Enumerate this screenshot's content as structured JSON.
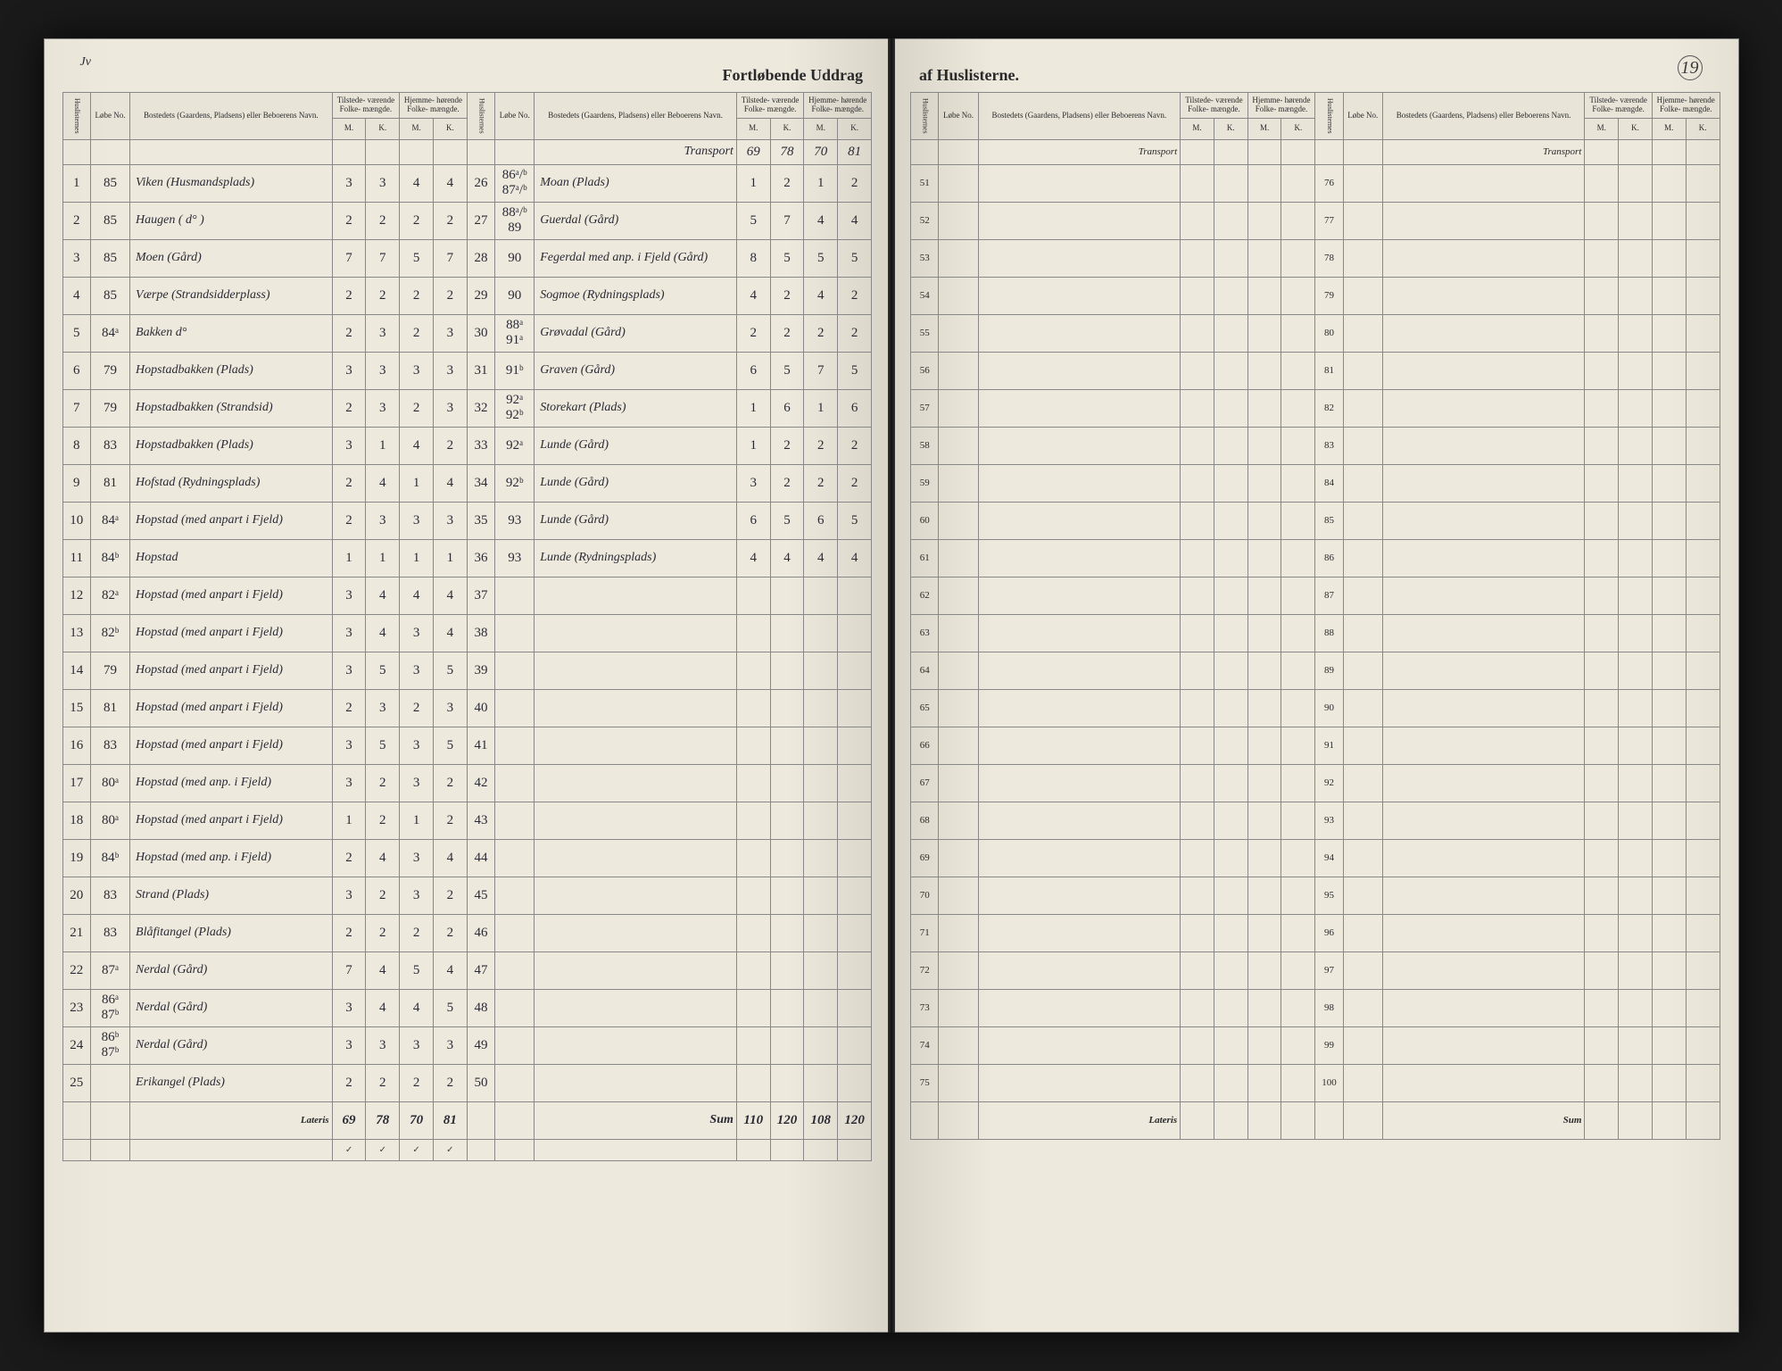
{
  "title_left": "Fortløbende Uddrag",
  "title_right": "af Huslisterne.",
  "page_no_tl": "Jv",
  "page_no_tr": "19",
  "headers": {
    "hus": "Huslisternes",
    "lobe": "Løbe\nNo.",
    "bosted": "Bostedets (Gaardens, Pladsens) eller Beboerens Navn.",
    "tilstede": "Tilstede-\nværende\nFolke-\nmængde.",
    "hjemme": "Hjemme-\nhørende\nFolke-\nmængde.",
    "m": "M.",
    "k": "K."
  },
  "transport_label": "Transport",
  "lateris_label": "Lateris",
  "sum_label": "Sum",
  "transport_vals": [
    "69",
    "78",
    "70",
    "81"
  ],
  "left_block1": [
    {
      "h": "1",
      "l": "85",
      "n": "Viken (Husmandsplads)",
      "v": [
        "3",
        "3",
        "4",
        "4"
      ]
    },
    {
      "h": "2",
      "l": "85",
      "n": "Haugen ( d° )",
      "v": [
        "2",
        "2",
        "2",
        "2"
      ]
    },
    {
      "h": "3",
      "l": "85",
      "n": "Moen (Gård)",
      "v": [
        "7",
        "7",
        "5",
        "7"
      ]
    },
    {
      "h": "4",
      "l": "85",
      "n": "Værpe (Strandsidderplass)",
      "v": [
        "2",
        "2",
        "2",
        "2"
      ]
    },
    {
      "h": "5",
      "l": "84ᵃ",
      "n": "Bakken d°",
      "v": [
        "2",
        "3",
        "2",
        "3"
      ]
    },
    {
      "h": "6",
      "l": "79",
      "n": "Hopstadbakken (Plads)",
      "v": [
        "3",
        "3",
        "3",
        "3"
      ]
    },
    {
      "h": "7",
      "l": "79",
      "n": "Hopstadbakken (Strandsid)",
      "v": [
        "2",
        "3",
        "2",
        "3"
      ]
    },
    {
      "h": "8",
      "l": "83",
      "n": "Hopstadbakken (Plads)",
      "v": [
        "3",
        "1",
        "4",
        "2"
      ]
    },
    {
      "h": "9",
      "l": "81",
      "n": "Hofstad (Rydningsplads)",
      "v": [
        "2",
        "4",
        "1",
        "4"
      ]
    },
    {
      "h": "10",
      "l": "84ᵃ",
      "n": "Hopstad (med anpart i Fjeld)",
      "v": [
        "2",
        "3",
        "3",
        "3"
      ]
    },
    {
      "h": "11",
      "l": "84ᵇ",
      "n": "Hopstad",
      "v": [
        "1",
        "1",
        "1",
        "1"
      ]
    },
    {
      "h": "12",
      "l": "82ᵃ",
      "n": "Hopstad (med anpart i Fjeld)",
      "v": [
        "3",
        "4",
        "4",
        "4"
      ]
    },
    {
      "h": "13",
      "l": "82ᵇ",
      "n": "Hopstad (med anpart i Fjeld)",
      "v": [
        "3",
        "4",
        "3",
        "4"
      ]
    },
    {
      "h": "14",
      "l": "79",
      "n": "Hopstad (med anpart i Fjeld)",
      "v": [
        "3",
        "5",
        "3",
        "5"
      ]
    },
    {
      "h": "15",
      "l": "81",
      "n": "Hopstad (med anpart i Fjeld)",
      "v": [
        "2",
        "3",
        "2",
        "3"
      ]
    },
    {
      "h": "16",
      "l": "83",
      "n": "Hopstad (med anpart i Fjeld)",
      "v": [
        "3",
        "5",
        "3",
        "5"
      ]
    },
    {
      "h": "17",
      "l": "80ᵃ",
      "n": "Hopstad (med anp. i Fjeld)",
      "v": [
        "3",
        "2",
        "3",
        "2"
      ]
    },
    {
      "h": "18",
      "l": "80ᵃ",
      "n": "Hopstad (med anpart i Fjeld)",
      "v": [
        "1",
        "2",
        "1",
        "2"
      ]
    },
    {
      "h": "19",
      "l": "84ᵇ",
      "n": "Hopstad (med anp. i Fjeld)",
      "v": [
        "2",
        "4",
        "3",
        "4"
      ]
    },
    {
      "h": "20",
      "l": "83",
      "n": "Strand (Plads)",
      "v": [
        "3",
        "2",
        "3",
        "2"
      ]
    },
    {
      "h": "21",
      "l": "83",
      "n": "Blåfitangel (Plads)",
      "v": [
        "2",
        "2",
        "2",
        "2"
      ]
    },
    {
      "h": "22",
      "l": "87ᵃ",
      "n": "Nerdal (Gård)",
      "v": [
        "7",
        "4",
        "5",
        "4"
      ]
    },
    {
      "h": "23",
      "l": "86ᵃ 87ᵇ",
      "n": "Nerdal (Gård)",
      "v": [
        "3",
        "4",
        "4",
        "5"
      ]
    },
    {
      "h": "24",
      "l": "86ᵇ 87ᵇ",
      "n": "Nerdal (Gård)",
      "v": [
        "3",
        "3",
        "3",
        "3"
      ]
    },
    {
      "h": "25",
      "l": "",
      "n": "Erikangel (Plads)",
      "v": [
        "2",
        "2",
        "2",
        "2"
      ]
    }
  ],
  "left_lateris": [
    "69",
    "78",
    "70",
    "81"
  ],
  "left_block2": [
    {
      "h": "26",
      "l": "86ᵃ/ᵇ 87ᵃ/ᵇ",
      "n": "Moan (Plads)",
      "v": [
        "1",
        "2",
        "1",
        "2"
      ]
    },
    {
      "h": "27",
      "l": "88ᵃ/ᵇ 89",
      "n": "Guerdal (Gård)",
      "v": [
        "5",
        "7",
        "4",
        "4"
      ]
    },
    {
      "h": "28",
      "l": "90",
      "n": "Fegerdal med anp. i Fjeld (Gård)",
      "v": [
        "8",
        "5",
        "5",
        "5"
      ]
    },
    {
      "h": "29",
      "l": "90",
      "n": "Sogmoe (Rydningsplads)",
      "v": [
        "4",
        "2",
        "4",
        "2"
      ]
    },
    {
      "h": "30",
      "l": "88ᵃ 91ᵃ",
      "n": "Grøvadal (Gård)",
      "v": [
        "2",
        "2",
        "2",
        "2"
      ]
    },
    {
      "h": "31",
      "l": "91ᵇ",
      "n": "Graven (Gård)",
      "v": [
        "6",
        "5",
        "7",
        "5"
      ]
    },
    {
      "h": "32",
      "l": "92ᵃ 92ᵇ",
      "n": "Storekart (Plads)",
      "v": [
        "1",
        "6",
        "1",
        "6"
      ]
    },
    {
      "h": "33",
      "l": "92ᵃ",
      "n": "Lunde (Gård)",
      "v": [
        "1",
        "2",
        "2",
        "2"
      ]
    },
    {
      "h": "34",
      "l": "92ᵇ",
      "n": "Lunde (Gård)",
      "v": [
        "3",
        "2",
        "2",
        "2"
      ]
    },
    {
      "h": "35",
      "l": "93",
      "n": "Lunde (Gård)",
      "v": [
        "6",
        "5",
        "6",
        "5"
      ]
    },
    {
      "h": "36",
      "l": "93",
      "n": "Lunde (Rydningsplads)",
      "v": [
        "4",
        "4",
        "4",
        "4"
      ]
    }
  ],
  "left_sum": [
    "110",
    "120",
    "108",
    "120"
  ],
  "right_rows_a": [
    51,
    52,
    53,
    54,
    55,
    56,
    57,
    58,
    59,
    60,
    61,
    62,
    63,
    64,
    65,
    66,
    67,
    68,
    69,
    70,
    71,
    72,
    73,
    74,
    75
  ],
  "right_rows_b": [
    76,
    77,
    78,
    79,
    80,
    81,
    82,
    83,
    84,
    85,
    86,
    87,
    88,
    89,
    90,
    91,
    92,
    93,
    94,
    95,
    96,
    97,
    98,
    99,
    100
  ]
}
